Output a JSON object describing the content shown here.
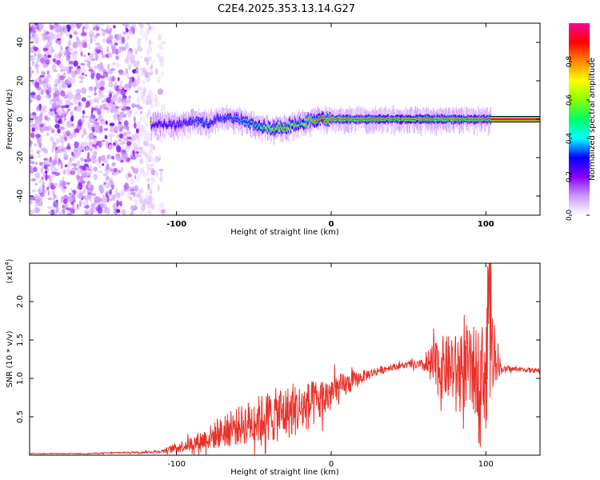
{
  "figure_title": "C2E4.2025.353.13.14.G27",
  "chart_data": [
    {
      "type": "heatmap",
      "panel": "top",
      "title": "C2E4.2025.353.13.14.G27",
      "xlabel": "Height of straight line (km)",
      "ylabel": "Frequency (Hz)",
      "xlim": [
        -195,
        135
      ],
      "ylim": [
        -50,
        50
      ],
      "xticks": [
        -100,
        0,
        100
      ],
      "xtick_labels": [
        "-100",
        "0",
        "100"
      ],
      "yticks": [
        -40,
        -20,
        0,
        20,
        40
      ],
      "ytick_labels": [
        "-40",
        "-20",
        "0",
        "20",
        "40"
      ],
      "colorbar": {
        "label": "Normalized spectral amplitude",
        "range": [
          0,
          1
        ],
        "ticks": [
          0.0,
          0.2,
          0.4,
          0.6,
          0.8
        ],
        "tick_labels": [
          "0.0",
          "0.2",
          "0.4",
          "0.6",
          "0.8"
        ],
        "colors": [
          "#ffffff",
          "#cc99ff",
          "#8800ff",
          "#0000ff",
          "#00ffff",
          "#00ff66",
          "#88ff00",
          "#ffff00",
          "#ff8800",
          "#ff0000",
          "#ff0099"
        ]
      },
      "noise_region_x": [
        -195,
        -108
      ],
      "signal_track": {
        "x": [
          -117,
          -110,
          -100,
          -90,
          -80,
          -70,
          -60,
          -50,
          -40,
          -30,
          -20,
          -15,
          -10,
          0,
          10,
          20,
          30,
          40,
          50,
          60,
          70,
          80,
          90,
          100,
          103,
          135
        ],
        "y": [
          -3,
          -2,
          -3,
          -1,
          -2,
          1,
          0,
          -3,
          -5,
          -4,
          -2,
          -1,
          0,
          0,
          0,
          0,
          0,
          0,
          0,
          0,
          0,
          0,
          0,
          0,
          0,
          0
        ],
        "amplitude": [
          0.25,
          0.3,
          0.3,
          0.35,
          0.35,
          0.35,
          0.4,
          0.5,
          0.75,
          0.8,
          0.6,
          0.75,
          0.9,
          0.95,
          0.9,
          0.9,
          0.9,
          0.9,
          0.9,
          0.9,
          0.9,
          0.9,
          0.9,
          0.9,
          0.95,
          0.95
        ]
      }
    },
    {
      "type": "line",
      "panel": "bottom",
      "xlabel": "Height of straight line (km)",
      "ylabel": "SNR (10 * v/v)",
      "yscale_label": "(x10",
      "yscale_exponent": "4",
      "yscale_close": ")",
      "xlim": [
        -195,
        135
      ],
      "ylim": [
        0,
        2.5
      ],
      "xticks": [
        -100,
        0,
        100
      ],
      "xtick_labels": [
        "-100",
        "0",
        "100"
      ],
      "yticks": [
        0.5,
        1.0,
        1.5,
        2.0
      ],
      "ytick_labels": [
        "0.5",
        "1.0",
        "1.5",
        "2.0"
      ],
      "color": "#e8302a",
      "series": [
        {
          "name": "SNR",
          "x": [
            -195,
            -180,
            -160,
            -140,
            -120,
            -110,
            -100,
            -90,
            -80,
            -70,
            -60,
            -50,
            -40,
            -30,
            -20,
            -10,
            0,
            10,
            20,
            30,
            40,
            50,
            60,
            65,
            70,
            80,
            90,
            95,
            100,
            103,
            105,
            110,
            120,
            135
          ],
          "y": [
            0.02,
            0.02,
            0.02,
            0.03,
            0.04,
            0.05,
            0.1,
            0.15,
            0.22,
            0.3,
            0.38,
            0.45,
            0.5,
            0.55,
            0.6,
            0.68,
            0.8,
            0.92,
            1.02,
            1.1,
            1.15,
            1.18,
            1.17,
            1.15,
            1.15,
            1.12,
            1.1,
            1.1,
            1.08,
            1.35,
            1.4,
            1.12,
            1.12,
            1.1
          ],
          "jitter": [
            0.005,
            0.005,
            0.005,
            0.01,
            0.015,
            0.02,
            0.06,
            0.1,
            0.15,
            0.2,
            0.25,
            0.3,
            0.35,
            0.35,
            0.33,
            0.3,
            0.25,
            0.15,
            0.08,
            0.05,
            0.04,
            0.04,
            0.08,
            0.3,
            0.4,
            0.45,
            0.55,
            0.6,
            0.65,
            0.8,
            0.5,
            0.04,
            0.03,
            0.03
          ]
        }
      ]
    }
  ]
}
